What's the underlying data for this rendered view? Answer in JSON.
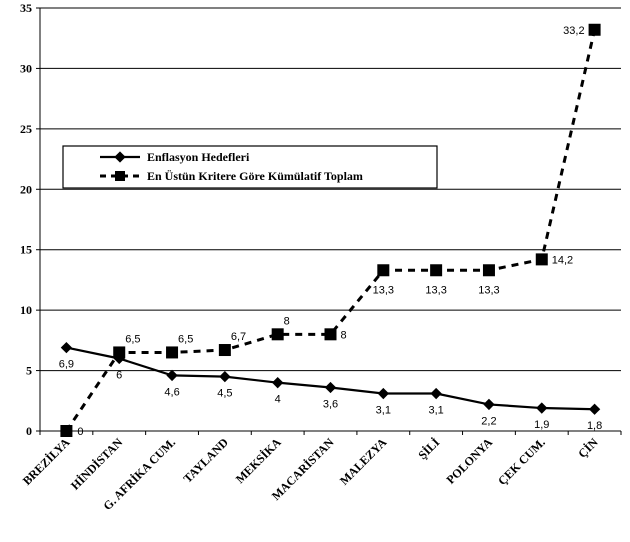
{
  "chart_data": {
    "type": "line",
    "title": "",
    "xlabel": "",
    "ylabel": "",
    "ylim": [
      0,
      35
    ],
    "yticks": [
      0,
      5,
      10,
      15,
      20,
      25,
      30,
      35
    ],
    "grid": "horizontal",
    "legend_position": "left-middle",
    "categories": [
      "BREZİLYA",
      "HİNDİSTAN",
      "G. AFRİKA CUM.",
      "TAYLAND",
      "MEKSİKA",
      "MACARİSTAN",
      "MALEZYA",
      "ŞİLİ",
      "POLONYA",
      "ÇEK CUM.",
      "ÇİN"
    ],
    "series": [
      {
        "name": "Enflasyon Hedefleri",
        "style": "solid-diamond",
        "color": "#000000",
        "values": [
          6.9,
          6,
          4.6,
          4.5,
          4,
          3.6,
          3.1,
          3.1,
          2.2,
          1.9,
          1.8
        ],
        "labels": [
          "6,9",
          "6",
          "4,6",
          "4,5",
          "4",
          "3,6",
          "3,1",
          "3,1",
          "2,2",
          "1,9",
          "1,8"
        ]
      },
      {
        "name": "En Üstün Kritere Göre Kümülatif Toplam",
        "style": "dashed-square",
        "color": "#000000",
        "values": [
          0,
          6.5,
          6.5,
          6.7,
          8,
          8,
          13.3,
          13.3,
          13.3,
          14.2,
          33.2
        ],
        "labels": [
          "0",
          "6,5",
          "6,5",
          "6,7",
          "8",
          "8",
          "13,3",
          "13,3",
          "13,3",
          "14,2",
          "33,2"
        ]
      }
    ]
  }
}
